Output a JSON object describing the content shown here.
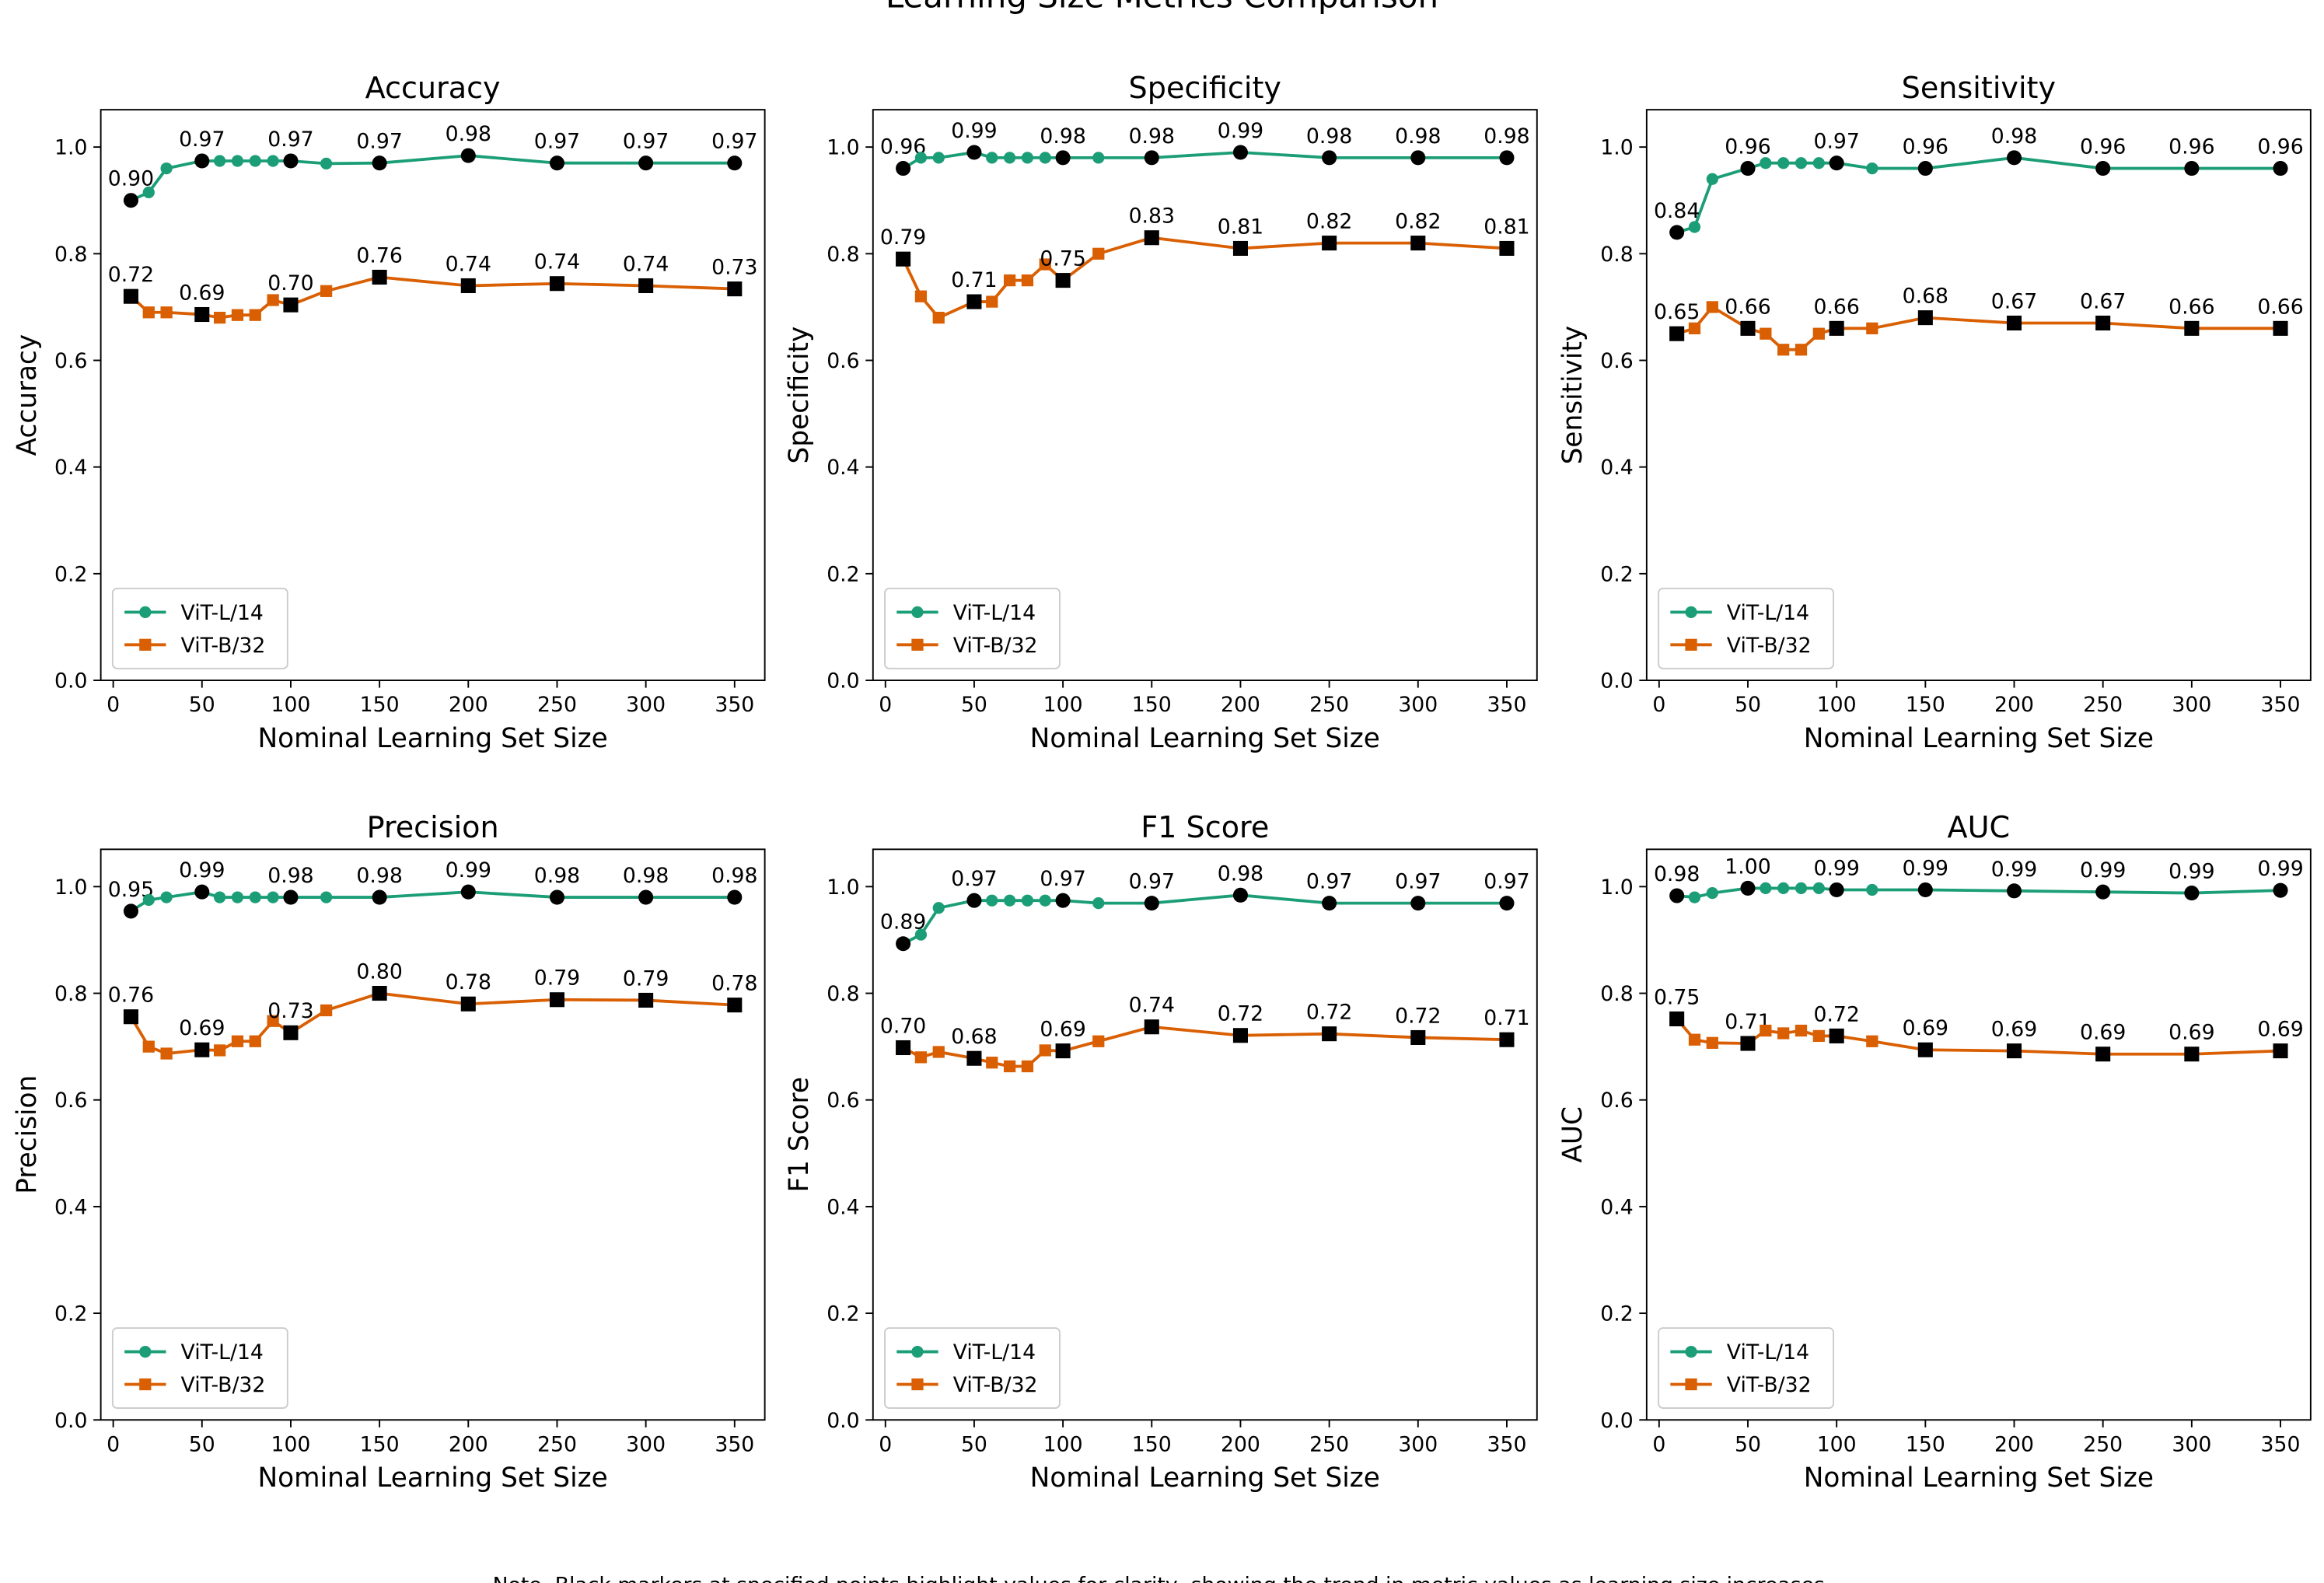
{
  "title": "Learning Size Metrics Comparison",
  "note": "Note. Black markers at specified points highlight values for clarity, showing the trend in metric values as learning size increases.",
  "chart_data": [
    {
      "type": "line",
      "title": "Accuracy",
      "x_label": "Nominal Learning Set Size",
      "y_label": "Accuracy",
      "x": [
        10,
        20,
        30,
        50,
        60,
        70,
        80,
        90,
        100,
        120,
        150,
        200,
        250,
        300,
        350
      ],
      "xlim": [
        -7,
        367
      ],
      "xticks": [
        0,
        50,
        100,
        150,
        200,
        250,
        300,
        350
      ],
      "ylim": [
        0,
        1.07
      ],
      "yticks": [
        {
          "value": 0,
          "label": "0.0"
        },
        0.2,
        0.4,
        0.6,
        0.8,
        {
          "value": 1,
          "label": "1.0"
        }
      ],
      "legend": "lower left",
      "highlight_color": "#000000",
      "series": [
        {
          "name": "ViT-L/14",
          "color": "#1b9e77",
          "marker": "circle",
          "values": [
            0.9,
            0.915,
            0.96,
            0.974,
            0.974,
            0.974,
            0.974,
            0.974,
            0.974,
            0.969,
            0.97,
            0.984,
            0.97,
            0.97,
            0.97
          ],
          "value_labels": [
            "0.90",
            null,
            null,
            "0.97",
            null,
            null,
            null,
            null,
            "0.97",
            null,
            "0.97",
            "0.98",
            "0.97",
            "0.97",
            "0.97"
          ]
        },
        {
          "name": "ViT-B/32",
          "color": "#d95f02",
          "marker": "square",
          "values": [
            0.72,
            0.69,
            0.69,
            0.686,
            0.68,
            0.685,
            0.685,
            0.713,
            0.704,
            0.73,
            0.756,
            0.74,
            0.744,
            0.74,
            0.734
          ],
          "value_labels": [
            "0.72",
            null,
            null,
            "0.69",
            null,
            null,
            null,
            null,
            "0.70",
            null,
            "0.76",
            "0.74",
            "0.74",
            "0.74",
            "0.73"
          ]
        }
      ]
    },
    {
      "type": "line",
      "title": "Specificity",
      "x_label": "Nominal Learning Set Size",
      "y_label": "Specificity",
      "x": [
        10,
        20,
        30,
        50,
        60,
        70,
        80,
        90,
        100,
        120,
        150,
        200,
        250,
        300,
        350
      ],
      "xlim": [
        -7,
        367
      ],
      "xticks": [
        0,
        50,
        100,
        150,
        200,
        250,
        300,
        350
      ],
      "ylim": [
        0,
        1.07
      ],
      "yticks": [
        {
          "value": 0,
          "label": "0.0"
        },
        0.2,
        0.4,
        0.6,
        0.8,
        {
          "value": 1,
          "label": "1.0"
        }
      ],
      "legend": "lower left",
      "highlight_color": "#000000",
      "series": [
        {
          "name": "ViT-L/14",
          "color": "#1b9e77",
          "marker": "circle",
          "values": [
            0.96,
            0.98,
            0.98,
            0.99,
            0.98,
            0.98,
            0.98,
            0.98,
            0.98,
            0.98,
            0.98,
            0.99,
            0.98,
            0.98,
            0.98
          ],
          "value_labels": [
            "0.96",
            null,
            null,
            "0.99",
            null,
            null,
            null,
            null,
            "0.98",
            null,
            "0.98",
            "0.99",
            "0.98",
            "0.98",
            "0.98"
          ]
        },
        {
          "name": "ViT-B/32",
          "color": "#d95f02",
          "marker": "square",
          "values": [
            0.79,
            0.72,
            0.68,
            0.71,
            0.71,
            0.75,
            0.75,
            0.78,
            0.75,
            0.8,
            0.83,
            0.81,
            0.82,
            0.82,
            0.81
          ],
          "value_labels": [
            "0.79",
            null,
            null,
            "0.71",
            null,
            null,
            null,
            null,
            "0.75",
            null,
            "0.83",
            "0.81",
            "0.82",
            "0.82",
            "0.81"
          ]
        }
      ]
    },
    {
      "type": "line",
      "title": "Sensitivity",
      "x_label": "Nominal Learning Set Size",
      "y_label": "Sensitivity",
      "x": [
        10,
        20,
        30,
        50,
        60,
        70,
        80,
        90,
        100,
        120,
        150,
        200,
        250,
        300,
        350
      ],
      "xlim": [
        -7,
        367
      ],
      "xticks": [
        0,
        50,
        100,
        150,
        200,
        250,
        300,
        350
      ],
      "ylim": [
        0,
        1.07
      ],
      "yticks": [
        {
          "value": 0,
          "label": "0.0"
        },
        0.2,
        0.4,
        0.6,
        0.8,
        {
          "value": 1,
          "label": "1.0"
        }
      ],
      "legend": "lower left",
      "highlight_color": "#000000",
      "series": [
        {
          "name": "ViT-L/14",
          "color": "#1b9e77",
          "marker": "circle",
          "values": [
            0.84,
            0.85,
            0.94,
            0.96,
            0.97,
            0.97,
            0.97,
            0.97,
            0.97,
            0.96,
            0.96,
            0.98,
            0.96,
            0.96,
            0.96
          ],
          "value_labels": [
            "0.84",
            null,
            null,
            "0.96",
            null,
            null,
            null,
            null,
            "0.97",
            null,
            "0.96",
            "0.98",
            "0.96",
            "0.96",
            "0.96"
          ]
        },
        {
          "name": "ViT-B/32",
          "color": "#d95f02",
          "marker": "square",
          "values": [
            0.65,
            0.66,
            0.7,
            0.66,
            0.65,
            0.62,
            0.62,
            0.65,
            0.66,
            0.66,
            0.68,
            0.67,
            0.67,
            0.66,
            0.66
          ],
          "value_labels": [
            "0.65",
            null,
            null,
            "0.66",
            null,
            null,
            null,
            null,
            "0.66",
            null,
            "0.68",
            "0.67",
            "0.67",
            "0.66",
            "0.66"
          ]
        }
      ]
    },
    {
      "type": "line",
      "title": "Precision",
      "x_label": "Nominal Learning Set Size",
      "y_label": "Precision",
      "x": [
        10,
        20,
        30,
        50,
        60,
        70,
        80,
        90,
        100,
        120,
        150,
        200,
        250,
        300,
        350
      ],
      "xlim": [
        -7,
        367
      ],
      "xticks": [
        0,
        50,
        100,
        150,
        200,
        250,
        300,
        350
      ],
      "ylim": [
        0,
        1.07
      ],
      "yticks": [
        {
          "value": 0,
          "label": "0.0"
        },
        0.2,
        0.4,
        0.6,
        0.8,
        {
          "value": 1,
          "label": "1.0"
        }
      ],
      "legend": "lower left",
      "highlight_color": "#000000",
      "series": [
        {
          "name": "ViT-L/14",
          "color": "#1b9e77",
          "marker": "circle",
          "values": [
            0.954,
            0.975,
            0.98,
            0.99,
            0.98,
            0.98,
            0.98,
            0.98,
            0.98,
            0.98,
            0.98,
            0.99,
            0.98,
            0.98,
            0.98
          ],
          "value_labels": [
            "0.95",
            null,
            null,
            "0.99",
            null,
            null,
            null,
            null,
            "0.98",
            null,
            "0.98",
            "0.99",
            "0.98",
            "0.98",
            "0.98"
          ]
        },
        {
          "name": "ViT-B/32",
          "color": "#d95f02",
          "marker": "square",
          "values": [
            0.756,
            0.7,
            0.687,
            0.694,
            0.693,
            0.71,
            0.71,
            0.748,
            0.726,
            0.768,
            0.8,
            0.78,
            0.788,
            0.787,
            0.778
          ],
          "value_labels": [
            "0.76",
            null,
            null,
            "0.69",
            null,
            null,
            null,
            null,
            "0.73",
            null,
            "0.80",
            "0.78",
            "0.79",
            "0.79",
            "0.78"
          ]
        }
      ]
    },
    {
      "type": "line",
      "title": "F1 Score",
      "x_label": "Nominal Learning Set Size",
      "y_label": "F1 Score",
      "x": [
        10,
        20,
        30,
        50,
        60,
        70,
        80,
        90,
        100,
        120,
        150,
        200,
        250,
        300,
        350
      ],
      "xlim": [
        -7,
        367
      ],
      "xticks": [
        0,
        50,
        100,
        150,
        200,
        250,
        300,
        350
      ],
      "ylim": [
        0,
        1.07
      ],
      "yticks": [
        {
          "value": 0,
          "label": "0.0"
        },
        0.2,
        0.4,
        0.6,
        0.8,
        {
          "value": 1,
          "label": "1.0"
        }
      ],
      "legend": "lower left",
      "highlight_color": "#000000",
      "series": [
        {
          "name": "ViT-L/14",
          "color": "#1b9e77",
          "marker": "circle",
          "values": [
            0.893,
            0.91,
            0.96,
            0.974,
            0.974,
            0.974,
            0.974,
            0.974,
            0.974,
            0.969,
            0.969,
            0.984,
            0.969,
            0.969,
            0.969
          ],
          "value_labels": [
            "0.89",
            null,
            null,
            "0.97",
            null,
            null,
            null,
            null,
            "0.97",
            null,
            "0.97",
            "0.98",
            "0.97",
            "0.97",
            "0.97"
          ]
        },
        {
          "name": "ViT-B/32",
          "color": "#d95f02",
          "marker": "square",
          "values": [
            0.698,
            0.68,
            0.69,
            0.678,
            0.67,
            0.663,
            0.663,
            0.693,
            0.692,
            0.71,
            0.737,
            0.721,
            0.724,
            0.717,
            0.713
          ],
          "value_labels": [
            "0.70",
            null,
            null,
            "0.68",
            null,
            null,
            null,
            null,
            "0.69",
            null,
            "0.74",
            "0.72",
            "0.72",
            "0.72",
            "0.71"
          ]
        }
      ]
    },
    {
      "type": "line",
      "title": "AUC",
      "x_label": "Nominal Learning Set Size",
      "y_label": "AUC",
      "x": [
        10,
        20,
        30,
        50,
        60,
        70,
        80,
        90,
        100,
        120,
        150,
        200,
        250,
        300,
        350
      ],
      "xlim": [
        -7,
        367
      ],
      "xticks": [
        0,
        50,
        100,
        150,
        200,
        250,
        300,
        350
      ],
      "ylim": [
        0,
        1.07
      ],
      "yticks": [
        {
          "value": 0,
          "label": "0.0"
        },
        0.2,
        0.4,
        0.6,
        0.8,
        {
          "value": 1,
          "label": "1.0"
        }
      ],
      "legend": "lower left",
      "highlight_color": "#000000",
      "series": [
        {
          "name": "ViT-L/14",
          "color": "#1b9e77",
          "marker": "circle",
          "values": [
            0.983,
            0.98,
            0.988,
            0.997,
            0.997,
            0.997,
            0.997,
            0.997,
            0.994,
            0.994,
            0.994,
            0.992,
            0.99,
            0.988,
            0.993
          ],
          "value_labels": [
            "0.98",
            null,
            null,
            "1.00",
            null,
            null,
            null,
            null,
            "0.99",
            null,
            "0.99",
            "0.99",
            "0.99",
            "0.99",
            "0.99"
          ]
        },
        {
          "name": "ViT-B/32",
          "color": "#d95f02",
          "marker": "square",
          "values": [
            0.752,
            0.713,
            0.707,
            0.706,
            0.73,
            0.725,
            0.73,
            0.72,
            0.72,
            0.71,
            0.694,
            0.692,
            0.686,
            0.686,
            0.692
          ],
          "value_labels": [
            "0.75",
            null,
            null,
            "0.71",
            null,
            null,
            null,
            null,
            "0.72",
            null,
            "0.69",
            "0.69",
            "0.69",
            "0.69",
            "0.69"
          ]
        }
      ]
    }
  ]
}
